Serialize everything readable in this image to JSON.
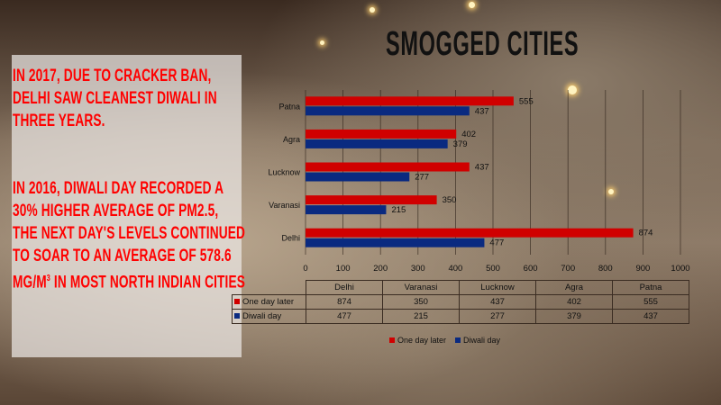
{
  "title": "SMOGGED CITIES",
  "panel": {
    "paragraph1": "In 2017, due to cracker ban, Delhi saw cleanest Diwali in three years.",
    "paragraph2_prefix": "In 2016, Diwali day recorded a 30% higher average of PM2.5, the next day's levels continued to soar to an average of 578.6 µg/m",
    "paragraph2_sup": "3",
    "paragraph2_suffix": " in most North Indian cities"
  },
  "chart_data": {
    "type": "bar",
    "orientation": "horizontal",
    "categories": [
      "Delhi",
      "Varanasi",
      "Lucknow",
      "Agra",
      "Patna"
    ],
    "series": [
      {
        "name": "One day later",
        "values": [
          874,
          350,
          437,
          402,
          555
        ],
        "color": "#d00000"
      },
      {
        "name": "Diwali day",
        "values": [
          477,
          215,
          277,
          379,
          437
        ],
        "color": "#0a2a80"
      }
    ],
    "xlim": [
      0,
      1000
    ],
    "xticks": [
      "0",
      "100",
      "200",
      "300",
      "400",
      "500",
      "600",
      "700",
      "800",
      "900",
      "1000"
    ],
    "grid": true,
    "data_table": true,
    "legend": "bottom"
  }
}
